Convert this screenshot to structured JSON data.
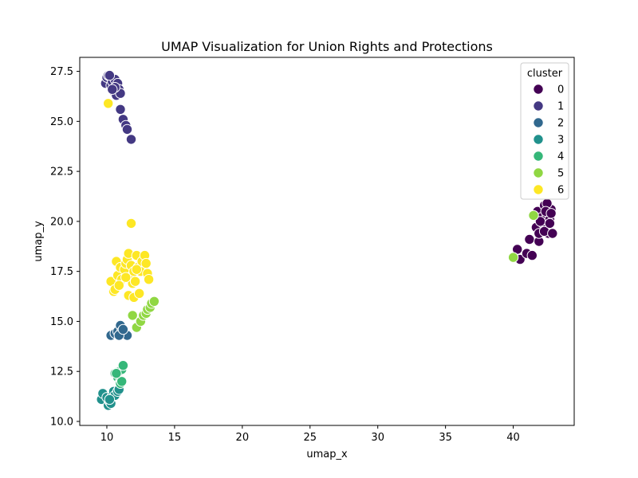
{
  "chart_data": {
    "type": "scatter",
    "title": "UMAP Visualization for Union Rights and Protections",
    "xlabel": "umap_x",
    "ylabel": "umap_y",
    "xlim": [
      8,
      44.5
    ],
    "ylim": [
      9.8,
      28.2
    ],
    "xticks": [
      10,
      15,
      20,
      25,
      30,
      35,
      40
    ],
    "yticks": [
      10.0,
      12.5,
      15.0,
      17.5,
      20.0,
      22.5,
      25.0,
      27.5
    ],
    "xtick_labels": [
      "10",
      "15",
      "20",
      "25",
      "30",
      "35",
      "40"
    ],
    "ytick_labels": [
      "10.0",
      "12.5",
      "15.0",
      "17.5",
      "20.0",
      "22.5",
      "25.0",
      "27.5"
    ],
    "legend": {
      "title": "cluster",
      "placement": "top-right",
      "entries": [
        "0",
        "1",
        "2",
        "3",
        "4",
        "5",
        "6"
      ]
    },
    "series": [
      {
        "name": "0",
        "color": "#440154",
        "points": [
          [
            40.2,
            18.3
          ],
          [
            40.5,
            18.1
          ],
          [
            40.3,
            18.6
          ],
          [
            41.0,
            18.4
          ],
          [
            41.2,
            19.1
          ],
          [
            41.4,
            18.3
          ],
          [
            41.7,
            19.7
          ],
          [
            41.8,
            20.5
          ],
          [
            41.9,
            19.0
          ],
          [
            41.9,
            19.4
          ],
          [
            42.1,
            20.2
          ],
          [
            42.2,
            19.9
          ],
          [
            42.3,
            20.8
          ],
          [
            42.4,
            19.6
          ],
          [
            42.5,
            20.3
          ],
          [
            42.6,
            19.4
          ],
          [
            42.7,
            20.1
          ],
          [
            42.8,
            20.6
          ],
          [
            42.5,
            20.9
          ],
          [
            42.0,
            20.0
          ],
          [
            42.3,
            19.5
          ],
          [
            42.9,
            19.4
          ],
          [
            42.7,
            19.9
          ],
          [
            42.4,
            20.5
          ],
          [
            42.8,
            20.4
          ]
        ]
      },
      {
        "name": "1",
        "color": "#443983",
        "points": [
          [
            9.9,
            26.9
          ],
          [
            10.0,
            27.2
          ],
          [
            10.1,
            27.3
          ],
          [
            10.3,
            26.8
          ],
          [
            10.4,
            27.0
          ],
          [
            10.5,
            26.5
          ],
          [
            10.6,
            27.1
          ],
          [
            10.7,
            26.3
          ],
          [
            10.8,
            26.9
          ],
          [
            10.9,
            26.6
          ],
          [
            11.0,
            26.4
          ],
          [
            11.0,
            25.6
          ],
          [
            11.2,
            25.1
          ],
          [
            11.4,
            24.8
          ],
          [
            11.5,
            24.6
          ],
          [
            11.8,
            24.1
          ],
          [
            10.2,
            27.3
          ],
          [
            10.6,
            26.7
          ],
          [
            10.4,
            26.6
          ]
        ]
      },
      {
        "name": "2",
        "color": "#31688e",
        "points": [
          [
            10.3,
            14.3
          ],
          [
            10.6,
            14.4
          ],
          [
            10.8,
            14.5
          ],
          [
            11.0,
            14.8
          ],
          [
            11.1,
            14.5
          ],
          [
            11.3,
            14.4
          ],
          [
            11.5,
            14.3
          ],
          [
            10.9,
            14.3
          ],
          [
            11.2,
            14.6
          ]
        ]
      },
      {
        "name": "3",
        "color": "#21918c",
        "points": [
          [
            9.6,
            11.1
          ],
          [
            9.7,
            11.4
          ],
          [
            10.0,
            11.2
          ],
          [
            10.1,
            10.8
          ],
          [
            10.2,
            11.0
          ],
          [
            10.3,
            10.9
          ],
          [
            10.4,
            11.3
          ],
          [
            10.5,
            11.5
          ],
          [
            10.6,
            11.3
          ],
          [
            10.8,
            11.5
          ],
          [
            10.9,
            11.6
          ],
          [
            10.2,
            11.1
          ]
        ]
      },
      {
        "name": "4",
        "color": "#35b779",
        "points": [
          [
            10.6,
            12.4
          ],
          [
            10.8,
            12.2
          ],
          [
            10.9,
            12.5
          ],
          [
            11.0,
            12.0
          ],
          [
            11.0,
            11.9
          ],
          [
            11.1,
            12.6
          ],
          [
            11.2,
            12.8
          ],
          [
            11.1,
            12.0
          ],
          [
            10.7,
            12.4
          ]
        ]
      },
      {
        "name": "5",
        "color": "#90d743",
        "points": [
          [
            11.9,
            15.3
          ],
          [
            12.2,
            14.7
          ],
          [
            12.5,
            15.0
          ],
          [
            12.7,
            15.3
          ],
          [
            12.9,
            15.4
          ],
          [
            13.0,
            15.6
          ],
          [
            13.2,
            15.7
          ],
          [
            13.3,
            15.9
          ],
          [
            13.5,
            16.0
          ],
          [
            40.0,
            18.2
          ],
          [
            41.5,
            20.3
          ]
        ]
      },
      {
        "name": "6",
        "color": "#fde725",
        "points": [
          [
            10.1,
            25.9
          ],
          [
            11.8,
            19.9
          ],
          [
            10.3,
            17.0
          ],
          [
            10.5,
            16.5
          ],
          [
            10.6,
            16.6
          ],
          [
            10.7,
            18.0
          ],
          [
            10.8,
            17.3
          ],
          [
            11.0,
            17.7
          ],
          [
            11.1,
            17.1
          ],
          [
            11.3,
            17.6
          ],
          [
            11.4,
            17.9
          ],
          [
            11.5,
            18.1
          ],
          [
            11.6,
            18.4
          ],
          [
            11.6,
            16.3
          ],
          [
            11.7,
            17.2
          ],
          [
            11.8,
            17.8
          ],
          [
            11.9,
            16.9
          ],
          [
            12.0,
            17.5
          ],
          [
            12.0,
            16.2
          ],
          [
            12.1,
            17.0
          ],
          [
            12.2,
            18.3
          ],
          [
            12.3,
            17.7
          ],
          [
            12.4,
            16.4
          ],
          [
            12.5,
            17.5
          ],
          [
            12.6,
            18.0
          ],
          [
            12.8,
            18.3
          ],
          [
            12.9,
            17.9
          ],
          [
            13.0,
            17.4
          ],
          [
            13.1,
            17.1
          ],
          [
            12.2,
            17.6
          ],
          [
            11.4,
            17.2
          ],
          [
            10.9,
            16.8
          ]
        ]
      }
    ]
  }
}
